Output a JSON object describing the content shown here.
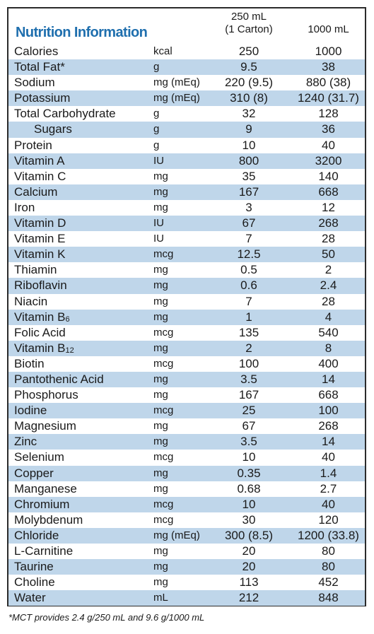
{
  "title": "Nutrition Information",
  "columns": {
    "col1_line1": "250 mL",
    "col1_line2": "(1 Carton)",
    "col2": "1000 mL"
  },
  "rows": [
    {
      "name": "Calories",
      "unit": "kcal",
      "v1": "250",
      "v2": "1000"
    },
    {
      "name": "Total Fat*",
      "unit": "g",
      "v1": "9.5",
      "v2": "38"
    },
    {
      "name": "Sodium",
      "unit": "mg (mEq)",
      "v1": "220 (9.5)",
      "v2": "880 (38)"
    },
    {
      "name": "Potassium",
      "unit": "mg (mEq)",
      "v1": "310 (8)",
      "v2": "1240 (31.7)"
    },
    {
      "name": "Total Carbohydrate",
      "unit": "g",
      "v1": "32",
      "v2": "128"
    },
    {
      "name": "Sugars",
      "unit": "g",
      "v1": "9",
      "v2": "36",
      "indent": true
    },
    {
      "name": "Protein",
      "unit": "g",
      "v1": "10",
      "v2": "40"
    },
    {
      "name": "Vitamin A",
      "unit": "IU",
      "v1": "800",
      "v2": "3200"
    },
    {
      "name": "Vitamin C",
      "unit": "mg",
      "v1": "35",
      "v2": "140"
    },
    {
      "name": "Calcium",
      "unit": "mg",
      "v1": "167",
      "v2": "668"
    },
    {
      "name": "Iron",
      "unit": "mg",
      "v1": "3",
      "v2": "12"
    },
    {
      "name": "Vitamin D",
      "unit": "IU",
      "v1": "67",
      "v2": "268"
    },
    {
      "name": "Vitamin E",
      "unit": "IU",
      "v1": "7",
      "v2": "28"
    },
    {
      "name": "Vitamin K",
      "unit": "mcg",
      "v1": "12.5",
      "v2": "50"
    },
    {
      "name": "Thiamin",
      "unit": "mg",
      "v1": "0.5",
      "v2": "2"
    },
    {
      "name": "Riboflavin",
      "unit": "mg",
      "v1": "0.6",
      "v2": "2.4"
    },
    {
      "name": "Niacin",
      "unit": "mg",
      "v1": "7",
      "v2": "28"
    },
    {
      "name": "Vitamin B",
      "sub": "6",
      "unit": "mg",
      "v1": "1",
      "v2": "4"
    },
    {
      "name": "Folic Acid",
      "unit": "mcg",
      "v1": "135",
      "v2": "540"
    },
    {
      "name": "Vitamin B",
      "sub": "12",
      "unit": "mg",
      "v1": "2",
      "v2": "8"
    },
    {
      "name": "Biotin",
      "unit": "mcg",
      "v1": "100",
      "v2": "400"
    },
    {
      "name": "Pantothenic Acid",
      "unit": "mg",
      "v1": "3.5",
      "v2": "14"
    },
    {
      "name": "Phosphorus",
      "unit": "mg",
      "v1": "167",
      "v2": "668"
    },
    {
      "name": "Iodine",
      "unit": "mcg",
      "v1": "25",
      "v2": "100"
    },
    {
      "name": "Magnesium",
      "unit": "mg",
      "v1": "67",
      "v2": "268"
    },
    {
      "name": "Zinc",
      "unit": "mg",
      "v1": "3.5",
      "v2": "14"
    },
    {
      "name": "Selenium",
      "unit": "mcg",
      "v1": "10",
      "v2": "40"
    },
    {
      "name": "Copper",
      "unit": "mg",
      "v1": "0.35",
      "v2": "1.4"
    },
    {
      "name": "Manganese",
      "unit": "mg",
      "v1": "0.68",
      "v2": "2.7"
    },
    {
      "name": "Chromium",
      "unit": "mcg",
      "v1": "10",
      "v2": "40"
    },
    {
      "name": "Molybdenum",
      "unit": "mcg",
      "v1": "30",
      "v2": "120"
    },
    {
      "name": "Chloride",
      "unit": "mg (mEq)",
      "v1": "300 (8.5)",
      "v2": "1200 (33.8)"
    },
    {
      "name": "L-Carnitine",
      "unit": "mg",
      "v1": "20",
      "v2": "80"
    },
    {
      "name": "Taurine",
      "unit": "mg",
      "v1": "20",
      "v2": "80"
    },
    {
      "name": "Choline",
      "unit": "mg",
      "v1": "113",
      "v2": "452"
    },
    {
      "name": "Water",
      "unit": "mL",
      "v1": "212",
      "v2": "848"
    }
  ],
  "footnote": "*MCT provides 2.4 g/250 mL and 9.6 g/1000 mL",
  "colors": {
    "title": "#1f6fae",
    "shade": "#bfd6ea",
    "border": "#2b2b2b"
  }
}
